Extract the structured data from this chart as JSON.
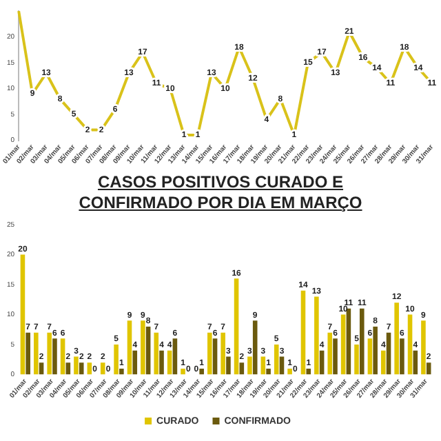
{
  "chart_data": [
    {
      "type": "line",
      "categories": [
        "01/mar",
        "02/mar",
        "03/mar",
        "04/mar",
        "05/mar",
        "06/mar",
        "07/mar",
        "08/mar",
        "09/mar",
        "10/mar",
        "11/mar",
        "12/mar",
        "13/mar",
        "14/mar",
        "15/mar",
        "16/mar",
        "17/mar",
        "18/mar",
        "19/mar",
        "20/mar",
        "21/mar",
        "22/mar",
        "23/mar",
        "24/mar",
        "25/mar",
        "26/mar",
        "27/mar",
        "28/mar",
        "29/mar",
        "30/mar",
        "31/mar"
      ],
      "values": [
        25,
        9,
        13,
        8,
        5,
        2,
        2,
        6,
        13,
        17,
        11,
        10,
        1,
        1,
        13,
        10,
        18,
        12,
        4,
        8,
        1,
        15,
        17,
        13,
        21,
        16,
        14,
        11,
        18,
        14,
        11
      ],
      "value_labels": [
        null,
        "9",
        "13",
        "8",
        "5",
        "2",
        "2",
        "6",
        "13",
        "17",
        "11",
        "10",
        "1",
        "1",
        "13",
        "10",
        "18",
        "12",
        "4",
        "8",
        "1",
        "15",
        "17",
        "13",
        "21",
        "16",
        "14",
        "11",
        "18",
        "14",
        "11"
      ],
      "color": "#d9c21a",
      "ylim": [
        0,
        25
      ],
      "yticks": [
        0,
        5,
        10,
        15,
        20
      ],
      "grid": false,
      "legend": false,
      "marker": "none"
    },
    {
      "type": "bar",
      "title": "CASOS POSITIVOS CURADO E CONFIRMADO POR DIA EM MARÇO",
      "categories": [
        "01/mar",
        "02/mar",
        "03/mar",
        "04/mar",
        "05/mar",
        "06/mar",
        "07/mar",
        "08/mar",
        "09/mar",
        "10/mar",
        "11/mar",
        "12/mar",
        "13/mar",
        "14/mar",
        "15/mar",
        "16/mar",
        "17/mar",
        "18/mar",
        "19/mar",
        "20/mar",
        "21/mar",
        "22/mar",
        "23/mar",
        "24/mar",
        "25/mar",
        "26/mar",
        "27/mar",
        "28/mar",
        "29/mar",
        "30/mar",
        "31/mar"
      ],
      "series": [
        {
          "name": "CURADO",
          "color": "#e0c500",
          "values": [
            20,
            7,
            7,
            6,
            3,
            2,
            2,
            5,
            9,
            9,
            7,
            4,
            1,
            0,
            7,
            7,
            16,
            3,
            3,
            5,
            1,
            14,
            13,
            7,
            10,
            5,
            6,
            4,
            12,
            10,
            9
          ]
        },
        {
          "name": "CONFIRMADO",
          "color": "#6b5a0e",
          "values": [
            7,
            2,
            6,
            2,
            2,
            0,
            0,
            1,
            4,
            8,
            4,
            6,
            0,
            1,
            6,
            3,
            2,
            9,
            1,
            3,
            0,
            1,
            4,
            6,
            11,
            11,
            8,
            7,
            6,
            4,
            2
          ]
        }
      ],
      "ylim": [
        0,
        25
      ],
      "yticks": [
        0,
        5,
        10,
        15,
        20,
        25
      ],
      "grid": false,
      "legend": "bottom",
      "data_labels": true
    }
  ]
}
